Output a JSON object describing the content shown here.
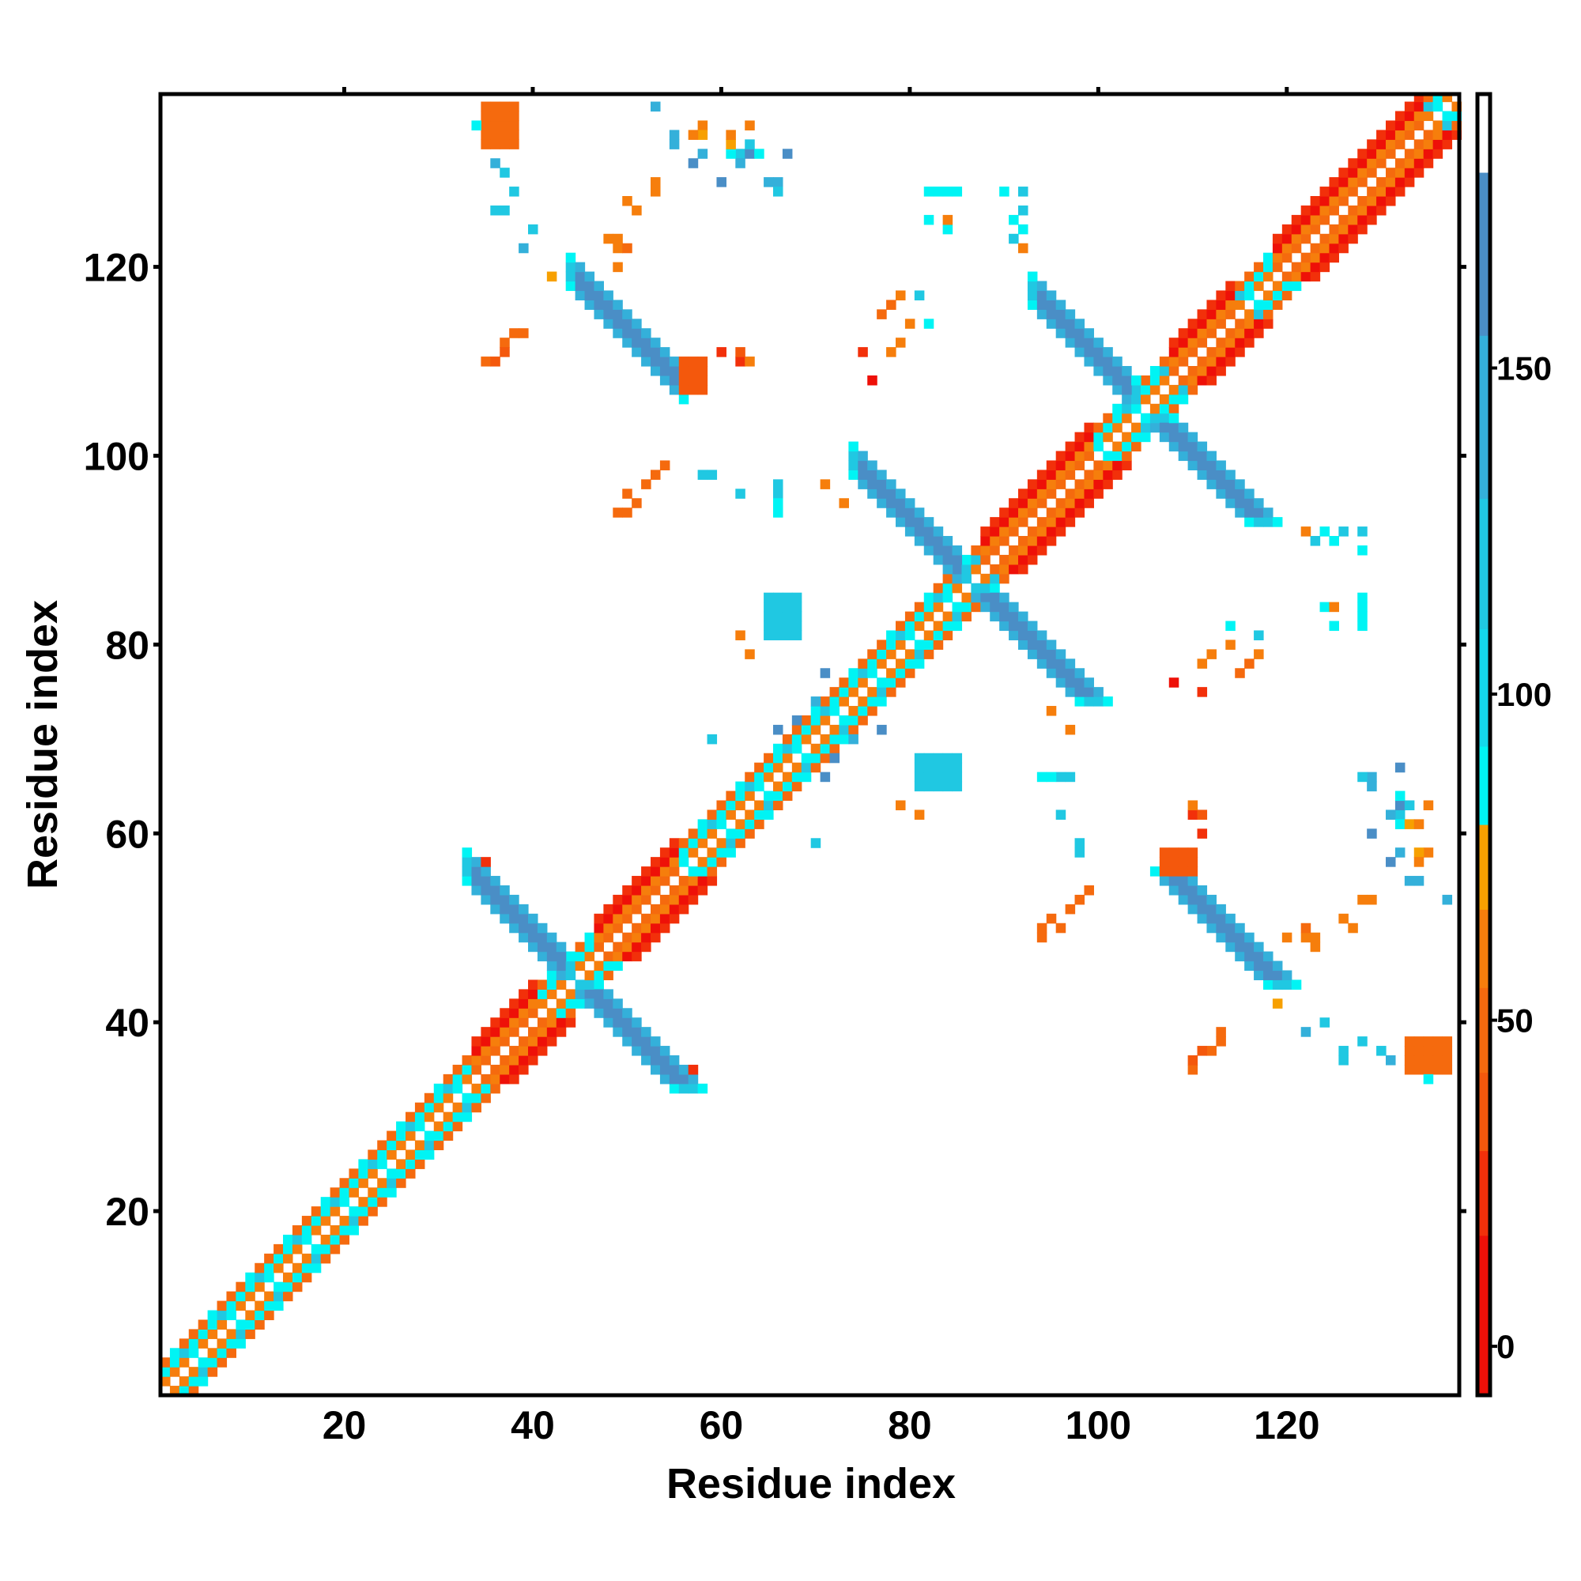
{
  "chart_data": {
    "type": "heatmap",
    "title": "",
    "xlabel": "Residue index",
    "ylabel": "Residue index",
    "xlim": [
      0.5,
      138.3
    ],
    "ylim": [
      0.5,
      138.3
    ],
    "x_ticks": [
      20,
      40,
      60,
      80,
      100,
      120
    ],
    "y_ticks": [
      20,
      40,
      60,
      80,
      100,
      120
    ],
    "symmetric": true,
    "colorbar": {
      "range": [
        -7.5,
        192
      ],
      "ticks": [
        0,
        50,
        100,
        150
      ],
      "bins": [
        {
          "from": -7.5,
          "to": 17,
          "color": "#ee1008"
        },
        {
          "from": 17,
          "to": 30,
          "color": "#f2300a"
        },
        {
          "from": 30,
          "to": 42,
          "color": "#f4580c"
        },
        {
          "from": 42,
          "to": 55,
          "color": "#f56a0e"
        },
        {
          "from": 55,
          "to": 67,
          "color": "#f67e0c"
        },
        {
          "from": 67,
          "to": 80,
          "color": "#f7a000"
        },
        {
          "from": 80,
          "to": 92,
          "color": "#00f4f4"
        },
        {
          "from": 92,
          "to": 110,
          "color": "#14d8ec"
        },
        {
          "from": 110,
          "to": 130,
          "color": "#20c8e2"
        },
        {
          "from": 130,
          "to": 155,
          "color": "#34b0da"
        },
        {
          "from": 155,
          "to": 180,
          "color": "#4a8ec6"
        },
        {
          "from": 180,
          "to": 192,
          "color": "#ffffff"
        }
      ]
    },
    "diagonal": {
      "start": 1,
      "end": 138,
      "coil_offsets": [
        [
          1,
          60
        ],
        [
          2,
          85
        ],
        [
          3,
          50
        ]
      ],
      "helix_offsets": [
        [
          1,
          45
        ],
        [
          2,
          60
        ],
        [
          3,
          10
        ],
        [
          4,
          25
        ]
      ],
      "helix_segments": [
        [
          34,
          40
        ],
        [
          47,
          55
        ],
        [
          88,
          99
        ],
        [
          108,
          114
        ],
        [
          119,
          134
        ]
      ]
    },
    "sheet_pairs": [
      {
        "sum": 89,
        "i_from": 33,
        "i_to": 44,
        "value": 160
      },
      {
        "sum": 173,
        "i_from": 74,
        "i_to": 86,
        "value": 160
      },
      {
        "sum": 210,
        "i_from": 93,
        "i_to": 104,
        "value": 160
      },
      {
        "sum": 163,
        "i_from": 44,
        "i_to": 56,
        "value": 160
      }
    ],
    "patches": [
      {
        "x": [
          65,
          68
        ],
        "y": [
          81,
          85
        ],
        "value": 125
      },
      {
        "x": [
          35,
          38
        ],
        "y": [
          133,
          137
        ],
        "value": 48
      },
      {
        "x": [
          56,
          58
        ],
        "y": [
          107,
          110
        ],
        "value": 40
      }
    ],
    "scattered": [
      [
        34,
        135,
        85
      ],
      [
        36,
        131,
        130
      ],
      [
        36,
        126,
        120
      ],
      [
        37,
        126,
        120
      ],
      [
        39,
        122,
        130
      ],
      [
        42,
        119,
        72
      ],
      [
        35,
        110,
        45
      ],
      [
        36,
        110,
        45
      ],
      [
        37,
        112,
        45
      ],
      [
        38,
        113,
        50
      ],
      [
        48,
        123,
        55
      ],
      [
        49,
        123,
        55
      ],
      [
        49,
        122,
        55
      ],
      [
        50,
        127,
        55
      ],
      [
        53,
        129,
        55
      ],
      [
        55,
        133,
        130
      ],
      [
        55,
        134,
        130
      ],
      [
        58,
        135,
        60
      ],
      [
        58,
        134,
        70
      ],
      [
        58,
        132,
        140
      ],
      [
        60,
        129,
        165
      ],
      [
        62,
        132,
        120
      ],
      [
        63,
        132,
        165
      ],
      [
        64,
        132,
        85
      ],
      [
        67,
        132,
        165
      ],
      [
        63,
        135,
        60
      ],
      [
        63,
        133,
        120
      ],
      [
        66,
        129,
        130
      ],
      [
        62,
        110,
        20
      ],
      [
        63,
        110,
        55
      ],
      [
        76,
        108,
        15
      ],
      [
        78,
        111,
        55
      ],
      [
        79,
        112,
        55
      ],
      [
        80,
        114,
        65
      ],
      [
        82,
        114,
        90
      ],
      [
        83,
        128,
        90
      ],
      [
        85,
        128,
        90
      ],
      [
        90,
        128,
        90
      ],
      [
        82,
        125,
        90
      ],
      [
        84,
        124,
        65
      ],
      [
        91,
        125,
        90
      ],
      [
        91,
        123,
        120
      ],
      [
        92,
        122,
        60
      ],
      [
        50,
        94,
        45
      ],
      [
        51,
        95,
        45
      ],
      [
        52,
        97,
        45
      ],
      [
        54,
        99,
        45
      ],
      [
        59,
        98,
        110
      ],
      [
        62,
        96,
        110
      ],
      [
        66,
        96,
        110
      ],
      [
        66,
        94,
        85
      ],
      [
        70,
        59,
        120
      ],
      [
        81,
        62,
        60
      ],
      [
        95,
        66,
        85
      ],
      [
        97,
        66,
        110
      ],
      [
        96,
        62,
        110
      ],
      [
        98,
        58,
        110
      ],
      [
        94,
        49,
        45
      ],
      [
        96,
        50,
        45
      ],
      [
        98,
        53,
        45
      ],
      [
        99,
        54,
        45
      ],
      [
        111,
        62,
        30
      ],
      [
        111,
        60,
        20
      ],
      [
        128,
        66,
        110
      ],
      [
        129,
        65,
        130
      ],
      [
        131,
        62,
        130
      ],
      [
        132,
        61,
        90
      ],
      [
        133,
        61,
        70
      ],
      [
        131,
        57,
        165
      ],
      [
        134,
        61,
        55
      ],
      [
        134,
        57,
        60
      ],
      [
        128,
        53,
        60
      ],
      [
        126,
        51,
        55
      ],
      [
        137,
        53,
        130
      ],
      [
        122,
        50,
        45
      ],
      [
        120,
        49,
        60
      ],
      [
        119,
        42,
        72
      ],
      [
        124,
        40,
        110
      ],
      [
        128,
        38,
        120
      ],
      [
        130,
        37,
        120
      ],
      [
        111,
        37,
        40
      ],
      [
        113,
        39,
        45
      ],
      [
        110,
        36,
        30
      ],
      [
        117,
        81,
        110
      ],
      [
        117,
        79,
        55
      ],
      [
        116,
        78,
        50
      ],
      [
        115,
        77,
        45
      ],
      [
        111,
        75,
        20
      ],
      [
        124,
        84,
        85
      ],
      [
        125,
        84,
        55
      ],
      [
        128,
        84,
        85
      ],
      [
        128,
        82,
        85
      ],
      [
        124,
        92,
        90
      ],
      [
        126,
        92,
        110
      ],
      [
        128,
        92,
        120
      ],
      [
        95,
        73,
        60
      ],
      [
        97,
        71,
        55
      ],
      [
        57,
        35,
        20
      ],
      [
        66,
        71,
        165
      ],
      [
        72,
        68,
        165
      ],
      [
        71,
        77,
        165
      ],
      [
        74,
        70,
        130
      ],
      [
        79,
        63,
        55
      ],
      [
        82,
        65,
        120
      ]
    ]
  }
}
